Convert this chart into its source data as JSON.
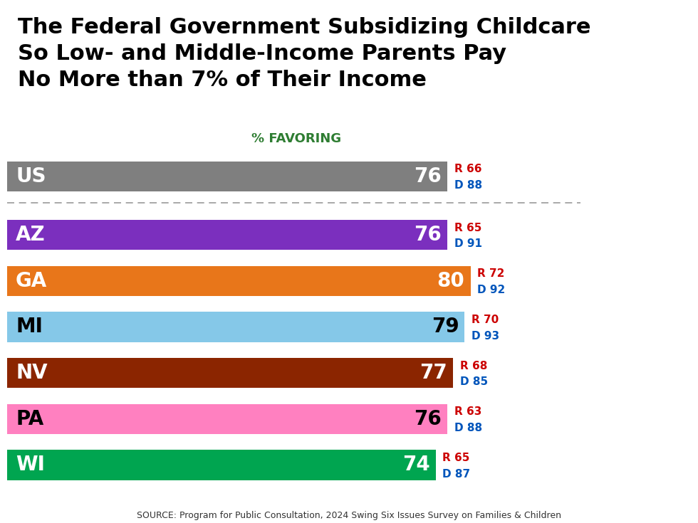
{
  "title_lines": [
    "The Federal Government Subsidizing Childcare",
    "So Low- and Middle-Income Parents Pay",
    "No More than 7% of Their Income"
  ],
  "subtitle": "% FAVORING",
  "source": "SOURCE: Program for Public Consultation, 2024 Swing Six Issues Survey on Families & Children",
  "us_bar": {
    "label": "US",
    "value": 76,
    "color": "#7f7f7f",
    "r_val": 66,
    "d_val": 88,
    "text_color": "#ffffff"
  },
  "states": [
    {
      "label": "AZ",
      "value": 76,
      "color": "#7B2FBE",
      "r_val": 65,
      "d_val": 91,
      "text_color": "#ffffff"
    },
    {
      "label": "GA",
      "value": 80,
      "color": "#E8761A",
      "r_val": 72,
      "d_val": 92,
      "text_color": "#ffffff"
    },
    {
      "label": "MI",
      "value": 79,
      "color": "#85C8E8",
      "r_val": 70,
      "d_val": 93,
      "text_color": "#000000"
    },
    {
      "label": "NV",
      "value": 77,
      "color": "#8B2500",
      "r_val": 68,
      "d_val": 85,
      "text_color": "#ffffff"
    },
    {
      "label": "PA",
      "value": 76,
      "color": "#FF80C0",
      "r_val": 63,
      "d_val": 88,
      "text_color": "#000000"
    },
    {
      "label": "WI",
      "value": 74,
      "color": "#00A550",
      "r_val": 65,
      "d_val": 87,
      "text_color": "#ffffff"
    }
  ],
  "title_bg": "#e0e0e0",
  "chart_bg": "#ffffff",
  "subtitle_color": "#2e7d32",
  "r_color": "#cc0000",
  "d_color": "#0055bb",
  "bar_max": 100,
  "title_fontsize": 22,
  "label_fontsize": 20,
  "value_fontsize": 20,
  "rd_fontsize": 11,
  "subtitle_fontsize": 13
}
